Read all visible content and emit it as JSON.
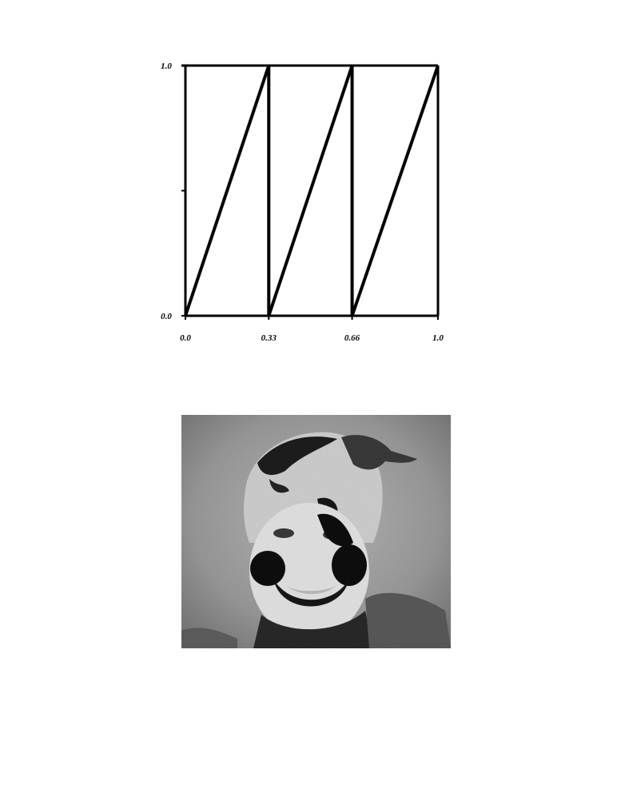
{
  "chart_data": {
    "type": "line",
    "title": "",
    "xlabel": "",
    "ylabel": "",
    "xlim": [
      0.0,
      1.0
    ],
    "ylim": [
      0.0,
      1.0
    ],
    "x_ticks": [
      "0.0",
      "0.33",
      "0.66",
      "1.0"
    ],
    "y_ticks": [
      "0.0",
      "1.0"
    ],
    "x_tick_values": [
      0.0,
      0.33,
      0.66,
      1.0
    ],
    "y_tick_values": [
      0.0,
      1.0
    ],
    "y_minor_ticks": [
      0.5
    ],
    "grid": false,
    "series": [
      {
        "x": [
          0.0,
          0.33,
          0.33,
          0.66,
          0.66,
          1.0
        ],
        "y": [
          0.0,
          1.0,
          0.0,
          1.0,
          0.0,
          1.0
        ]
      }
    ]
  },
  "colors": {
    "line": "#000000",
    "background": "#ffffff"
  },
  "photo": {
    "description_icon": "solarized-face-photo"
  }
}
